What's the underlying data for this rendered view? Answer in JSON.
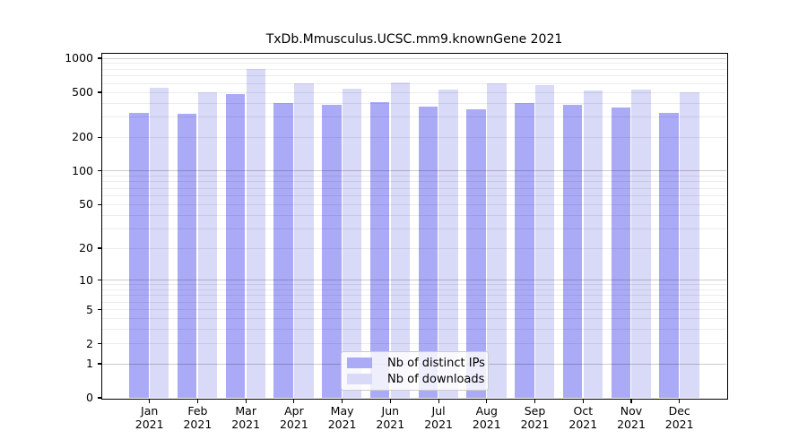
{
  "chart_data": {
    "type": "bar",
    "title": "TxDb.Mmusculus.UCSC.mm9.knownGene 2021",
    "y_scale": "log1p",
    "ylim": [
      0,
      1000
    ],
    "y_ticks": [
      0,
      1,
      2,
      5,
      10,
      20,
      50,
      100,
      200,
      500,
      1000
    ],
    "grid": "horizontal log gridlines, drawn over bars",
    "legend_position": "inside bottom-center",
    "categories": [
      "Jan",
      "Feb",
      "Mar",
      "Apr",
      "May",
      "Jun",
      "Jul",
      "Aug",
      "Sep",
      "Oct",
      "Nov",
      "Dec"
    ],
    "x_tick_year": "2021",
    "series": [
      {
        "name": "Nb of distinct IPs",
        "color": "#aaaaf6",
        "values": [
          330,
          320,
          480,
          400,
          385,
          410,
          375,
          355,
          405,
          385,
          365,
          330
        ]
      },
      {
        "name": "Nb of downloads",
        "color": "#d9d9f8",
        "values": [
          550,
          500,
          800,
          600,
          540,
          610,
          525,
          600,
          580,
          520,
          530,
          500
        ]
      }
    ],
    "colors": {
      "background": "#ffffff",
      "spine": "#000000",
      "grid_minor": "#ececec",
      "grid_major": "#cccccc",
      "legend_border": "#cccccc"
    }
  }
}
